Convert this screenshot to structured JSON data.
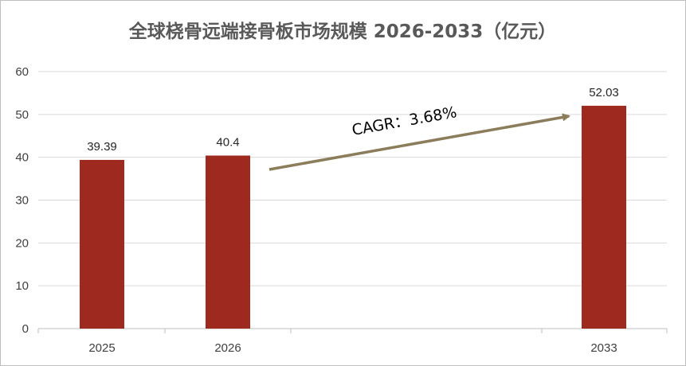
{
  "chart_data": {
    "type": "bar",
    "title": "全球桡骨远端接骨板市场规模 2026-2033（亿元）",
    "categories": [
      "2025",
      "2026",
      "2033"
    ],
    "values": [
      39.39,
      40.4,
      52.03
    ],
    "data_labels": [
      "39.39",
      "40.4",
      "52.03"
    ],
    "ylim": [
      0,
      60
    ],
    "y_ticks": [
      0,
      10,
      20,
      30,
      40,
      50,
      60
    ],
    "grid": true,
    "legend": "none",
    "bar_color": "#9E2A1F",
    "annotation": {
      "text": "CAGR：3.68%",
      "arrow_color": "#8B7D5A"
    }
  }
}
